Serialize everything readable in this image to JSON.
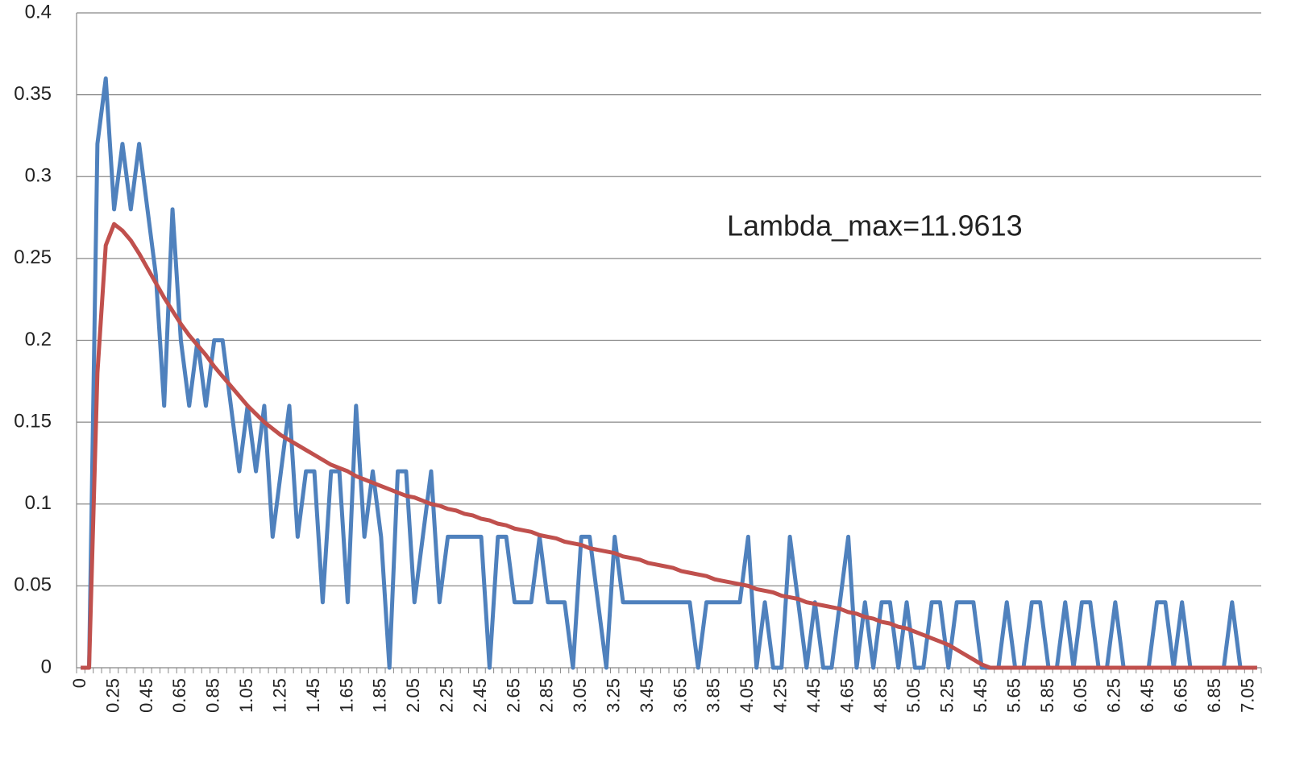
{
  "chart_data": {
    "type": "line",
    "annotation": "Lambda_max=11.9613",
    "categories": [
      "0",
      null,
      null,
      null,
      "0.25",
      null,
      null,
      null,
      "0.45",
      null,
      null,
      null,
      "0.65",
      null,
      null,
      null,
      "0.85",
      null,
      null,
      null,
      "1.05",
      null,
      null,
      null,
      "1.25",
      null,
      null,
      null,
      "1.45",
      null,
      null,
      null,
      "1.65",
      null,
      null,
      null,
      "1.85",
      null,
      null,
      null,
      "2.05",
      null,
      null,
      null,
      "2.25",
      null,
      null,
      null,
      "2.45",
      null,
      null,
      null,
      "2.65",
      null,
      null,
      null,
      "2.85",
      null,
      null,
      null,
      "3.05",
      null,
      null,
      null,
      "3.25",
      null,
      null,
      null,
      "3.45",
      null,
      null,
      null,
      "3.65",
      null,
      null,
      null,
      "3.85",
      null,
      null,
      null,
      "4.05",
      null,
      null,
      null,
      "4.25",
      null,
      null,
      null,
      "4.45",
      null,
      null,
      null,
      "4.65",
      null,
      null,
      null,
      "4.85",
      null,
      null,
      null,
      "5.05",
      null,
      null,
      null,
      "5.25",
      null,
      null,
      null,
      "5.45",
      null,
      null,
      null,
      "5.65",
      null,
      null,
      null,
      "5.85",
      null,
      null,
      null,
      "6.05",
      null,
      null,
      null,
      "6.25",
      null,
      null,
      null,
      "6.45",
      null,
      null,
      null,
      "6.65",
      null,
      null,
      null,
      "6.85",
      null,
      null,
      null,
      "7.05",
      null
    ],
    "series": [
      {
        "color": "#4f81bd",
        "values": [
          0,
          0,
          0.32,
          0.36,
          0.28,
          0.32,
          0.28,
          0.32,
          0.28,
          0.24,
          0.16,
          0.28,
          0.2,
          0.16,
          0.2,
          0.16,
          0.2,
          0.2,
          0.16,
          0.12,
          0.16,
          0.12,
          0.16,
          0.08,
          0.12,
          0.16,
          0.08,
          0.12,
          0.12,
          0.04,
          0.12,
          0.12,
          0.04,
          0.16,
          0.08,
          0.12,
          0.08,
          0,
          0.12,
          0.12,
          0.04,
          0.08,
          0.12,
          0.04,
          0.08,
          0.08,
          0.08,
          0.08,
          0.08,
          0,
          0.08,
          0.08,
          0.04,
          0.04,
          0.04,
          0.08,
          0.04,
          0.04,
          0.04,
          0,
          0.08,
          0.08,
          0.04,
          0,
          0.08,
          0.04,
          0.04,
          0.04,
          0.04,
          0.04,
          0.04,
          0.04,
          0.04,
          0.04,
          0,
          0.04,
          0.04,
          0.04,
          0.04,
          0.04,
          0.08,
          0,
          0.04,
          0,
          0,
          0.08,
          0.04,
          0,
          0.04,
          0,
          0,
          0.04,
          0.08,
          0,
          0.04,
          0,
          0.04,
          0.04,
          0,
          0.04,
          0,
          0,
          0.04,
          0.04,
          0,
          0.04,
          0.04,
          0.04,
          0,
          0,
          0,
          0.04,
          0,
          0,
          0.04,
          0.04,
          0,
          0,
          0.04,
          0,
          0.04,
          0.04,
          0,
          0,
          0.04,
          0,
          0,
          0,
          0,
          0.04,
          0.04,
          0,
          0.04,
          0,
          0,
          0,
          0,
          0,
          0.04,
          0,
          0,
          0
        ]
      },
      {
        "color": "#c0504d",
        "values": [
          0,
          0,
          0.18,
          0.258,
          0.271,
          0.267,
          0.261,
          0.253,
          0.244,
          0.235,
          0.226,
          0.218,
          0.21,
          0.203,
          0.197,
          0.191,
          0.184,
          0.178,
          0.172,
          0.166,
          0.16,
          0.155,
          0.15,
          0.146,
          0.142,
          0.139,
          0.136,
          0.133,
          0.13,
          0.127,
          0.124,
          0.122,
          0.12,
          0.117,
          0.115,
          0.113,
          0.111,
          0.109,
          0.107,
          0.105,
          0.104,
          0.102,
          0.1,
          0.099,
          0.097,
          0.096,
          0.094,
          0.093,
          0.091,
          0.09,
          0.088,
          0.087,
          0.085,
          0.084,
          0.083,
          0.081,
          0.08,
          0.079,
          0.077,
          0.076,
          0.075,
          0.073,
          0.072,
          0.071,
          0.07,
          0.068,
          0.067,
          0.066,
          0.064,
          0.063,
          0.062,
          0.061,
          0.059,
          0.058,
          0.057,
          0.056,
          0.054,
          0.053,
          0.052,
          0.051,
          0.05,
          0.048,
          0.047,
          0.046,
          0.044,
          0.043,
          0.042,
          0.04,
          0.039,
          0.038,
          0.037,
          0.036,
          0.034,
          0.033,
          0.031,
          0.03,
          0.028,
          0.027,
          0.025,
          0.024,
          0.022,
          0.02,
          0.018,
          0.016,
          0.014,
          0.011,
          0.008,
          0.005,
          0.002,
          0,
          0,
          0,
          0,
          0,
          0,
          0,
          0,
          0,
          0,
          0,
          0,
          0,
          0,
          0,
          0,
          0,
          0,
          0,
          0,
          0,
          0,
          0,
          0,
          0,
          0,
          0,
          0,
          0,
          0,
          0,
          0,
          0
        ]
      }
    ],
    "ylim": [
      0,
      0.4
    ],
    "yticks": [
      0,
      0.05,
      0.1,
      0.15,
      0.2,
      0.25,
      0.3,
      0.35,
      0.4
    ],
    "grid": true
  }
}
